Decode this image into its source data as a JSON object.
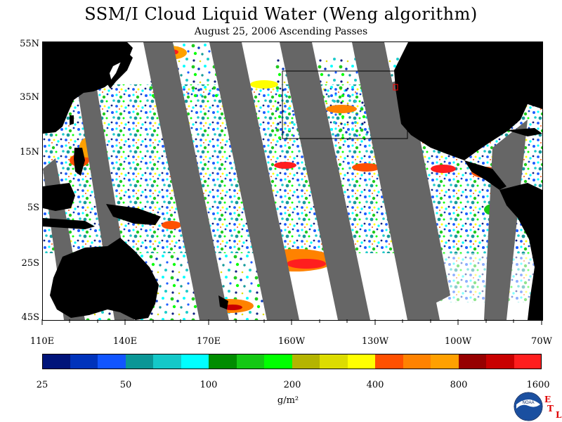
{
  "title": "SSM/I Cloud Liquid Water (Weng algorithm)",
  "subtitle": "August 25, 2006  Ascending Passes",
  "map": {
    "lat_labels": [
      "55N",
      "35N",
      "15N",
      "5S",
      "25S",
      "45S"
    ],
    "lon_labels": [
      "110E",
      "140E",
      "170E",
      "160W",
      "130W",
      "100W",
      "70W"
    ],
    "land_color": "#000000",
    "no_data_color": "#666666",
    "no_cloud_color": "#ffffff"
  },
  "colorbar": {
    "labels": [
      "25",
      "50",
      "100",
      "200",
      "400",
      "800",
      "1600"
    ],
    "units": "g/m²",
    "colors": [
      "#00147a",
      "#0033bb",
      "#1155ff",
      "#0a9696",
      "#14c8c8",
      "#00ffff",
      "#008c00",
      "#14c814",
      "#00ff00",
      "#b4b400",
      "#dcdc00",
      "#ffff00",
      "#ff5000",
      "#ff8200",
      "#ffa000",
      "#960000",
      "#c80000",
      "#ff1e1e"
    ]
  },
  "logo": {
    "text": "NOAA",
    "letters": [
      "E",
      "T",
      "L"
    ]
  }
}
